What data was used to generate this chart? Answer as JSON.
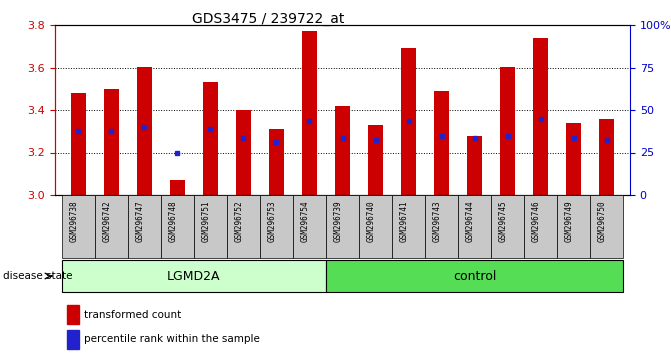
{
  "title": "GDS3475 / 239722_at",
  "samples": [
    "GSM296738",
    "GSM296742",
    "GSM296747",
    "GSM296748",
    "GSM296751",
    "GSM296752",
    "GSM296753",
    "GSM296754",
    "GSM296739",
    "GSM296740",
    "GSM296741",
    "GSM296743",
    "GSM296744",
    "GSM296745",
    "GSM296746",
    "GSM296749",
    "GSM296750"
  ],
  "groups": [
    "LGMD2A",
    "LGMD2A",
    "LGMD2A",
    "LGMD2A",
    "LGMD2A",
    "LGMD2A",
    "LGMD2A",
    "LGMD2A",
    "control",
    "control",
    "control",
    "control",
    "control",
    "control",
    "control",
    "control",
    "control"
  ],
  "bar_values": [
    3.48,
    3.5,
    3.6,
    3.07,
    3.53,
    3.4,
    3.31,
    3.77,
    3.42,
    3.33,
    3.69,
    3.49,
    3.28,
    3.6,
    3.74,
    3.34,
    3.36
  ],
  "percentile_values": [
    3.3,
    3.3,
    3.32,
    3.2,
    3.31,
    3.27,
    3.25,
    3.35,
    3.27,
    3.26,
    3.35,
    3.28,
    3.27,
    3.28,
    3.36,
    3.27,
    3.26
  ],
  "bar_color": "#cc0000",
  "blue_color": "#2222cc",
  "y_min": 3.0,
  "y_max": 3.8,
  "y_ticks": [
    3.0,
    3.2,
    3.4,
    3.6,
    3.8
  ],
  "right_y_ticks": [
    0,
    25,
    50,
    75,
    100
  ],
  "right_y_labels": [
    "0",
    "25",
    "50",
    "75",
    "100%"
  ],
  "group_colors": {
    "LGMD2A": "#ccffcc",
    "control": "#55dd55"
  },
  "disease_state_label": "disease state",
  "legend_items": [
    "transformed count",
    "percentile rank within the sample"
  ],
  "axis_color_left": "#cc0000",
  "axis_color_right": "#0000cc",
  "sample_box_color": "#c8c8c8",
  "bar_width": 0.45
}
